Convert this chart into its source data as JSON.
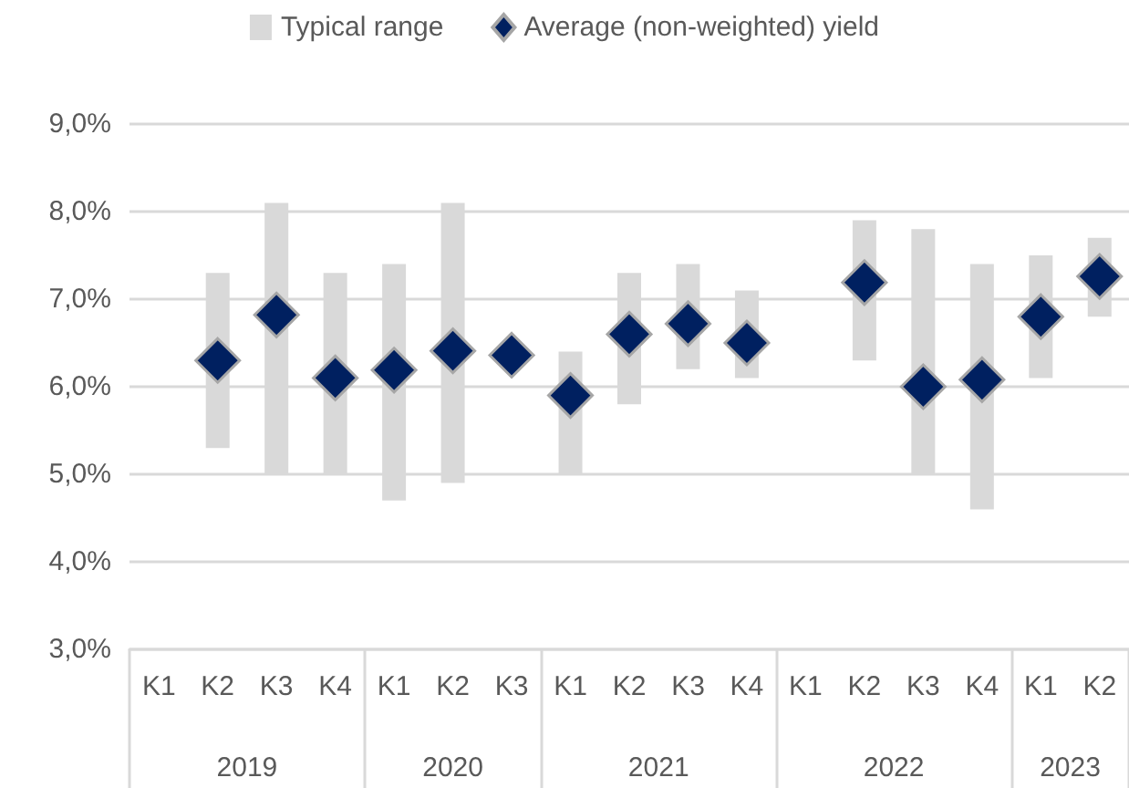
{
  "chart_data": {
    "type": "bar",
    "categories": [
      "K1",
      "K2",
      "K3",
      "K4",
      "K1",
      "K2",
      "K3",
      "K1",
      "K2",
      "K3",
      "K4",
      "K1",
      "K2",
      "K3",
      "K4",
      "K1",
      "K2"
    ],
    "series": [
      {
        "name": "Typical range",
        "color": "#d9d9d9",
        "base": [
          null,
          5.3,
          5.0,
          5.0,
          4.7,
          4.9,
          null,
          5.0,
          5.8,
          6.2,
          6.1,
          null,
          6.3,
          5.0,
          4.6,
          6.1,
          6.8
        ],
        "values": [
          null,
          2.0,
          3.1,
          2.3,
          2.7,
          3.2,
          null,
          1.4,
          1.5,
          1.2,
          1.0,
          null,
          1.6,
          2.8,
          2.8,
          1.4,
          0.9
        ]
      },
      {
        "name": "Average (non-weighted) yield",
        "type": "scatter",
        "marker": "diamond",
        "color": "#002060",
        "values": [
          null,
          6.3,
          6.82,
          6.1,
          6.19,
          6.41,
          6.36,
          5.9,
          6.6,
          6.72,
          6.5,
          null,
          7.19,
          6.0,
          6.08,
          6.8,
          7.26
        ]
      }
    ],
    "ylim": [
      3,
      9
    ],
    "yticks": [
      {
        "value": 3,
        "label": "3,0%"
      },
      {
        "value": 4,
        "label": "4,0%"
      },
      {
        "value": 5,
        "label": "5,0%"
      },
      {
        "value": 6,
        "label": "6,0%"
      },
      {
        "value": 7,
        "label": "7,0%"
      },
      {
        "value": 8,
        "label": "8,0%"
      },
      {
        "value": 9,
        "label": "9,0%"
      }
    ],
    "grid": "y",
    "legend": "top",
    "annotations": [
      "2019",
      "2020",
      "2021",
      "2022",
      "2023"
    ]
  }
}
